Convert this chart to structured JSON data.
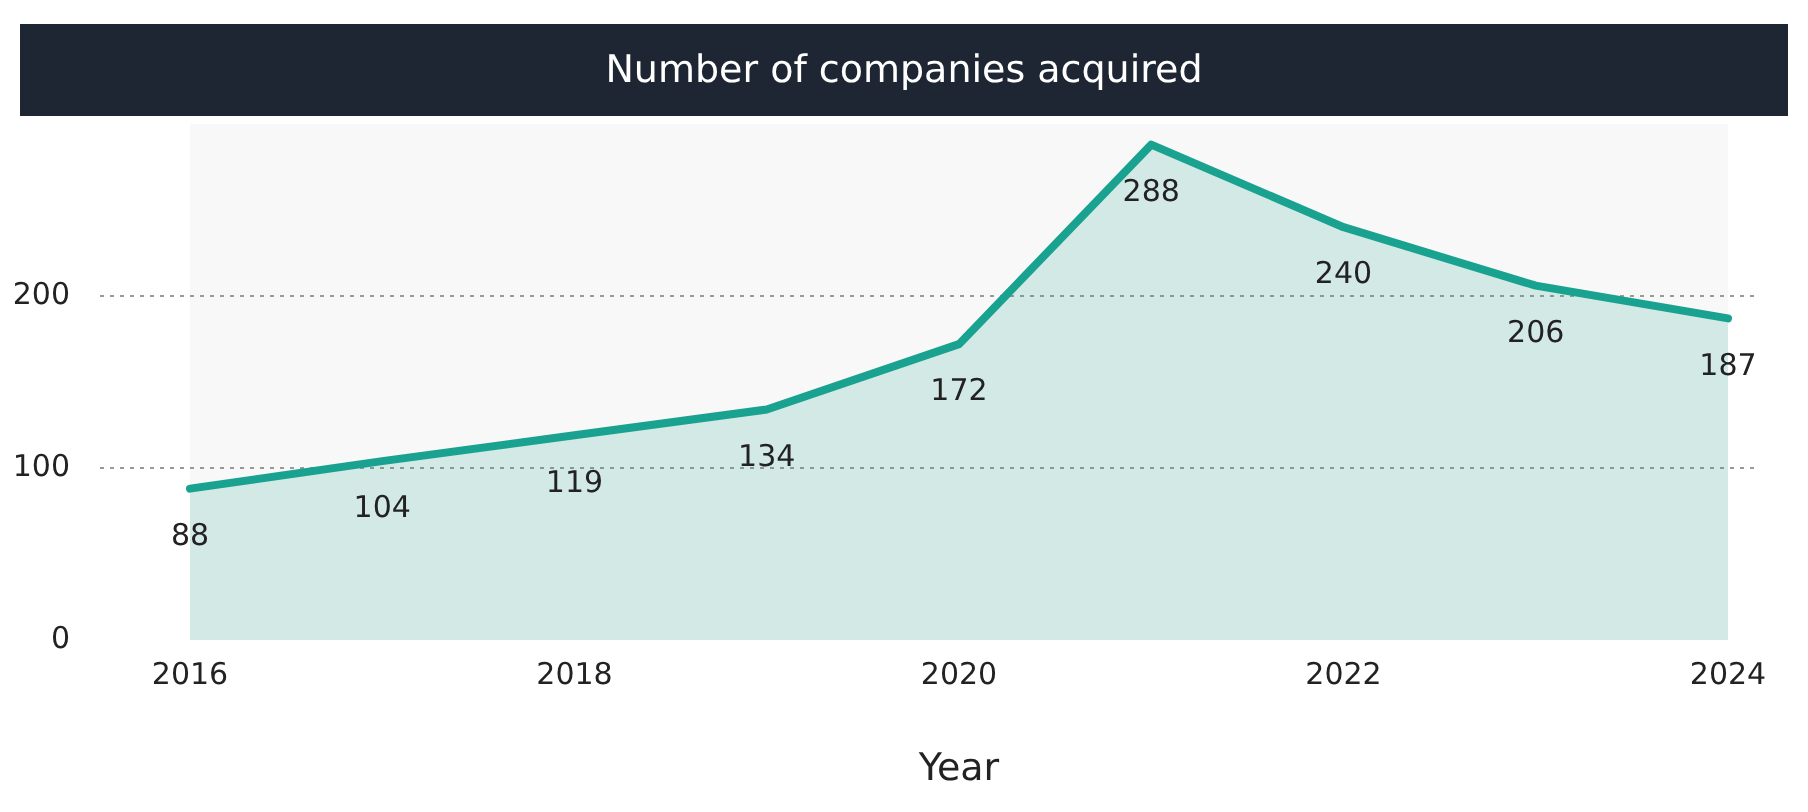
{
  "chart_data": {
    "type": "area",
    "title": "Number of companies acquired",
    "xlabel": "Year",
    "x": [
      2016,
      2017,
      2018,
      2019,
      2020,
      2021,
      2022,
      2023,
      2024
    ],
    "series": [
      {
        "color": "#19a28f",
        "values": [
          88,
          104,
          119,
          134,
          172,
          288,
          240,
          206,
          187
        ]
      }
    ],
    "xlim": [
      2016,
      2024
    ],
    "xticks": [
      2016,
      2018,
      2020,
      2022,
      2024
    ],
    "ylim": [
      0,
      300
    ],
    "yticks": [
      0,
      100,
      200
    ],
    "grid": "y",
    "data_labels": true,
    "marker": "none",
    "line_style": "solid"
  }
}
